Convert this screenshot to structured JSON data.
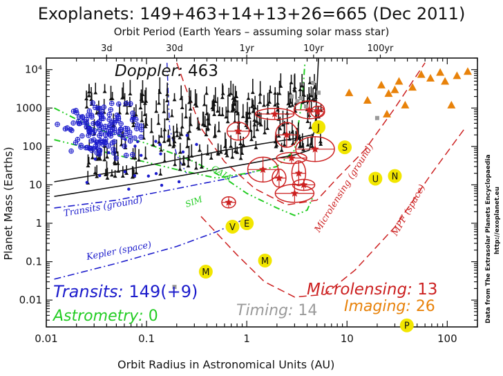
{
  "chart_data": {
    "type": "scatter",
    "title": "Exoplanets: 149+463+14+13+26=665 (Dec 2011)",
    "top_axis_title": "Orbit Period (Earth Years – assuming solar mass star)",
    "top_ticks": [
      {
        "label": "3d",
        "x": 0.04
      },
      {
        "label": "30d",
        "x": 0.19
      },
      {
        "label": "1yr",
        "x": 1
      },
      {
        "label": "10yr",
        "x": 4.64
      },
      {
        "label": "100yr",
        "x": 21.5
      }
    ],
    "xlabel": "Orbit Radius in Astronomical Units (AU)",
    "ylabel": "Planet Mass (Earths)",
    "xscale": "log",
    "yscale": "log",
    "xlim": [
      0.01,
      200
    ],
    "ylim": [
      0.002,
      20000
    ],
    "x_ticks": [
      {
        "label": "0.01",
        "value": 0.01
      },
      {
        "label": "0.1",
        "value": 0.1
      },
      {
        "label": "1",
        "value": 1
      },
      {
        "label": "10",
        "value": 10
      },
      {
        "label": "100",
        "value": 100
      }
    ],
    "y_ticks": [
      {
        "label": "0.01",
        "value": 0.01
      },
      {
        "label": "0.1",
        "value": 0.1
      },
      {
        "label": "1",
        "value": 1
      },
      {
        "label": "10",
        "value": 10
      },
      {
        "label": "100",
        "value": 100
      },
      {
        "label": "1000",
        "value": 1000
      },
      {
        "label": "10⁴",
        "value": 10000
      }
    ],
    "method_labels": {
      "doppler_name": "Doppler:",
      "doppler_count": "463",
      "transits_name": "Transits:",
      "transits_count": "149(+9)",
      "astrometry_name": "Astrometry:",
      "astrometry_count": "0",
      "timing_name": "Timing:",
      "timing_count": "14",
      "microlensing_name": "Microlensing:",
      "microlensing_count": "13",
      "imaging_name": "Imaging:",
      "imaging_count": "26"
    },
    "curve_labels": {
      "transits_ground": "Transits (ground)",
      "kepler": "Kepler (space)",
      "sim": "SIM",
      "gaia": "GAIA",
      "microlensing_ground": "Microlensing (ground)",
      "mpf": "MPF (space)"
    },
    "solar_system": [
      {
        "label": "M",
        "x": 0.39,
        "y": 0.055
      },
      {
        "label": "V",
        "x": 0.72,
        "y": 0.815
      },
      {
        "label": "E",
        "x": 1.0,
        "y": 1.0
      },
      {
        "label": "M",
        "x": 1.52,
        "y": 0.107
      },
      {
        "label": "J",
        "x": 5.2,
        "y": 318
      },
      {
        "label": "S",
        "x": 9.5,
        "y": 95
      },
      {
        "label": "U",
        "x": 19.2,
        "y": 14.5
      },
      {
        "label": "N",
        "x": 30,
        "y": 17
      },
      {
        "label": "P",
        "x": 39.5,
        "y": 0.0022
      }
    ],
    "microlensing_points": [
      {
        "x": 0.66,
        "y": 3.5
      },
      {
        "x": 0.82,
        "y": 250
      },
      {
        "x": 1.45,
        "y": 25
      },
      {
        "x": 1.9,
        "y": 700
      },
      {
        "x": 2.1,
        "y": 15
      },
      {
        "x": 2.5,
        "y": 200
      },
      {
        "x": 2.8,
        "y": 50
      },
      {
        "x": 3.0,
        "y": 6
      },
      {
        "x": 3.3,
        "y": 20
      },
      {
        "x": 3.7,
        "y": 10
      },
      {
        "x": 4.2,
        "y": 900
      },
      {
        "x": 4.8,
        "y": 85
      },
      {
        "x": 5.1,
        "y": 800
      }
    ],
    "imaging_points": [
      {
        "x": 10.5,
        "y": 2500
      },
      {
        "x": 16,
        "y": 1600
      },
      {
        "x": 22,
        "y": 4000
      },
      {
        "x": 25,
        "y": 700
      },
      {
        "x": 30,
        "y": 3000
      },
      {
        "x": 33,
        "y": 5000
      },
      {
        "x": 38,
        "y": 1200
      },
      {
        "x": 45,
        "y": 3500
      },
      {
        "x": 55,
        "y": 7500
      },
      {
        "x": 68,
        "y": 6000
      },
      {
        "x": 85,
        "y": 8500
      },
      {
        "x": 95,
        "y": 5000
      },
      {
        "x": 110,
        "y": 1200
      },
      {
        "x": 125,
        "y": 7000
      },
      {
        "x": 160,
        "y": 9000
      },
      {
        "x": 26,
        "y": 2400
      }
    ],
    "timing_points": [
      {
        "x": 0.19,
        "y": 0.022
      },
      {
        "x": 2.8,
        "y": 2000
      },
      {
        "x": 3.5,
        "y": 1800
      },
      {
        "x": 4.6,
        "y": 4500
      },
      {
        "x": 5.2,
        "y": 2500
      },
      {
        "x": 3.2,
        "y": 1500
      },
      {
        "x": 20,
        "y": 550
      },
      {
        "x": 3.9,
        "y": 1100
      }
    ],
    "colors": {
      "doppler": "#111111",
      "transits": "#1c1ccc",
      "astrometry": "#22cc22",
      "timing": "#9a9a9a",
      "microlensing": "#cc2020",
      "imaging": "#e8820a",
      "solar_system": "#f2e600"
    },
    "grid": false,
    "credit_line1": "Data from The Extrasolar Planets Encyclopaedia",
    "credit_line2": "http://exoplanet.eu"
  }
}
